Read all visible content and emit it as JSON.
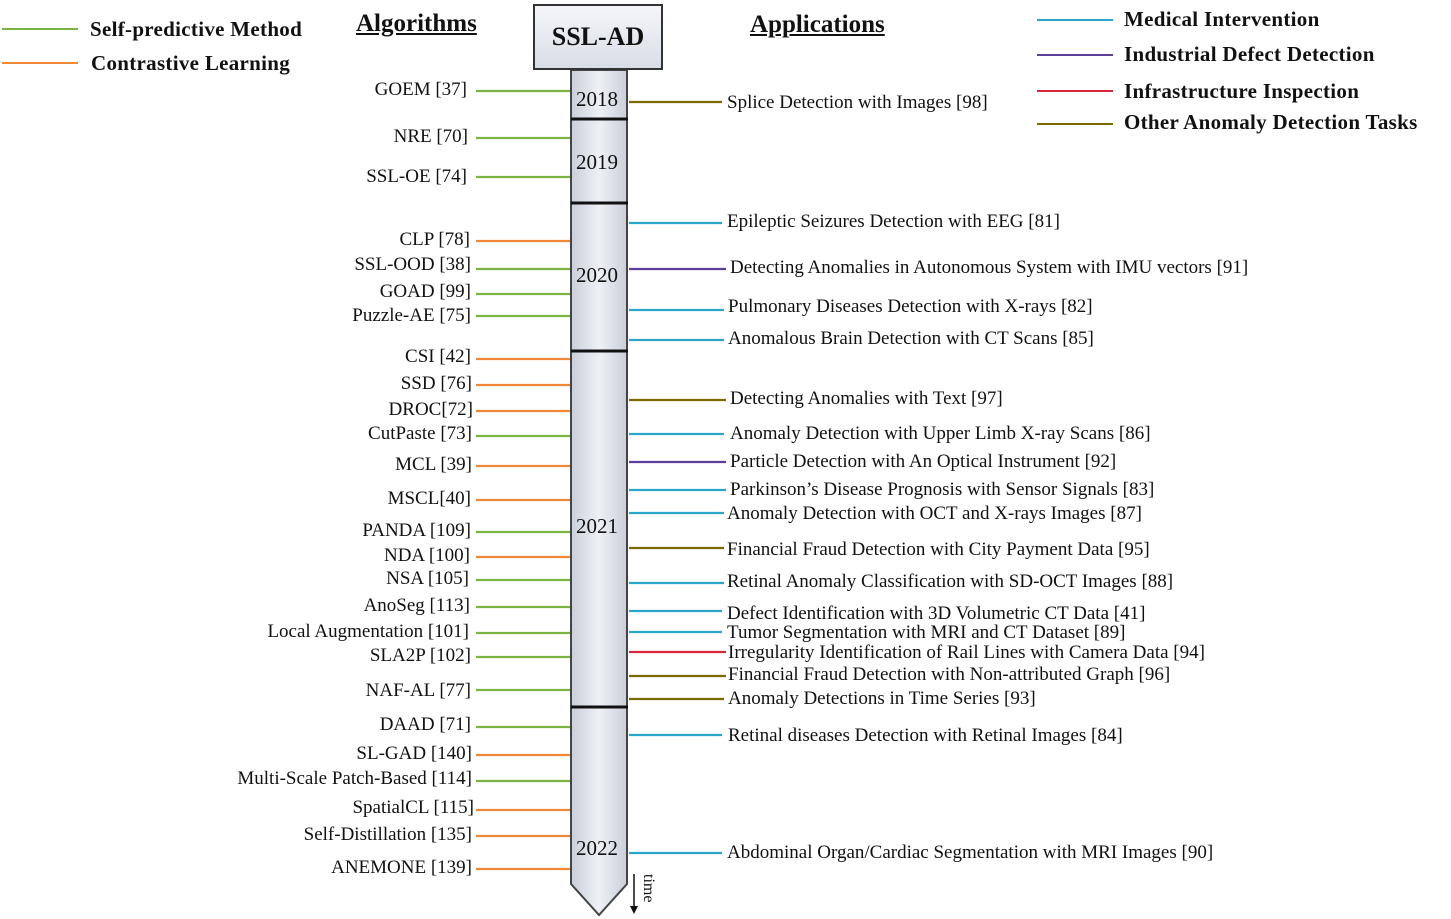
{
  "headers": {
    "algorithms": "Algorithms",
    "applications": "Applications",
    "center": "SSL-AD",
    "time": "time"
  },
  "colors": {
    "self_predictive": "#7cb342",
    "contrastive": "#f0883a",
    "medical": "#2aa6c8",
    "industrial": "#5b3f99",
    "infrastructure": "#d7263d",
    "other": "#7a6a00"
  },
  "legend_left": [
    {
      "label": "Self-predictive Method",
      "color": "#7cb342"
    },
    {
      "label": "Contrastive Learning",
      "color": "#f0883a"
    }
  ],
  "legend_right": [
    {
      "label": "Medical Intervention",
      "color": "#2aa6c8"
    },
    {
      "label": "Industrial Defect Detection",
      "color": "#5b3f99"
    },
    {
      "label": "Infrastructure Inspection",
      "color": "#d7263d"
    },
    {
      "label": "Other Anomaly Detection Tasks",
      "color": "#7a6a00"
    }
  ],
  "years": [
    "2018",
    "2019",
    "2020",
    "2021",
    "2022"
  ],
  "algorithms": [
    {
      "label": "GOEM [37]",
      "type": "self_predictive"
    },
    {
      "label": "NRE [70]",
      "type": "self_predictive"
    },
    {
      "label": "SSL-OE [74]",
      "type": "self_predictive"
    },
    {
      "label": "CLP [78]",
      "type": "contrastive"
    },
    {
      "label": "SSL-OOD [38]",
      "type": "self_predictive"
    },
    {
      "label": "GOAD [99]",
      "type": "self_predictive"
    },
    {
      "label": "Puzzle-AE [75]",
      "type": "self_predictive"
    },
    {
      "label": "CSI [42]",
      "type": "contrastive"
    },
    {
      "label": "SSD [76]",
      "type": "contrastive"
    },
    {
      "label": "DROC[72]",
      "type": "contrastive"
    },
    {
      "label": "CutPaste [73]",
      "type": "self_predictive"
    },
    {
      "label": "MCL [39]",
      "type": "contrastive"
    },
    {
      "label": "MSCL[40]",
      "type": "contrastive"
    },
    {
      "label": "PANDA [109]",
      "type": "self_predictive"
    },
    {
      "label": "NDA [100]",
      "type": "contrastive"
    },
    {
      "label": "NSA [105]",
      "type": "self_predictive"
    },
    {
      "label": "AnoSeg [113]",
      "type": "self_predictive"
    },
    {
      "label": "Local Augmentation [101]",
      "type": "self_predictive"
    },
    {
      "label": "SLA2P [102]",
      "type": "self_predictive"
    },
    {
      "label": "NAF-AL [77]",
      "type": "self_predictive"
    },
    {
      "label": "DAAD [71]",
      "type": "self_predictive"
    },
    {
      "label": "SL-GAD [140]",
      "type": "contrastive"
    },
    {
      "label": "Multi-Scale Patch-Based [114]",
      "type": "self_predictive"
    },
    {
      "label": "SpatialCL [115]",
      "type": "contrastive"
    },
    {
      "label": "Self-Distillation [135]",
      "type": "contrastive"
    },
    {
      "label": "ANEMONE [139]",
      "type": "contrastive"
    }
  ],
  "applications": [
    {
      "label": "Splice Detection with Images [98]",
      "type": "other"
    },
    {
      "label": "Epileptic Seizures Detection with EEG [81]",
      "type": "medical"
    },
    {
      "label": "Detecting Anomalies in Autonomous System with IMU vectors [91]",
      "type": "industrial"
    },
    {
      "label": "Pulmonary Diseases Detection with X-rays [82]",
      "type": "medical"
    },
    {
      "label": "Anomalous Brain Detection with CT Scans [85]",
      "type": "medical"
    },
    {
      "label": "Detecting Anomalies with Text [97]",
      "type": "other"
    },
    {
      "label": "Anomaly Detection with Upper Limb X-ray Scans [86]",
      "type": "medical"
    },
    {
      "label": "Particle Detection with An Optical Instrument [92]",
      "type": "industrial"
    },
    {
      "label": "Parkinson’s Disease Prognosis with Sensor Signals [83]",
      "type": "medical"
    },
    {
      "label": "Anomaly Detection with OCT and X-rays Images [87]",
      "type": "medical"
    },
    {
      "label": "Financial Fraud Detection with City Payment Data [95]",
      "type": "other"
    },
    {
      "label": "Retinal Anomaly Classification with SD-OCT Images [88]",
      "type": "medical"
    },
    {
      "label": "Defect Identification with 3D Volumetric CT Data [41]",
      "type": "medical"
    },
    {
      "label": "Tumor Segmentation with MRI and CT Dataset [89]",
      "type": "medical"
    },
    {
      "label": "Irregularity Identification of Rail Lines with Camera Data [94]",
      "type": "infrastructure"
    },
    {
      "label": "Financial Fraud Detection with Non-attributed Graph [96]",
      "type": "other"
    },
    {
      "label": "Anomaly Detections in Time Series [93]",
      "type": "other"
    },
    {
      "label": "Retinal diseases Detection with Retinal Images [84]",
      "type": "medical"
    },
    {
      "label": "Abdominal Organ/Cardiac Segmentation with MRI Images [90]",
      "type": "medical"
    }
  ]
}
